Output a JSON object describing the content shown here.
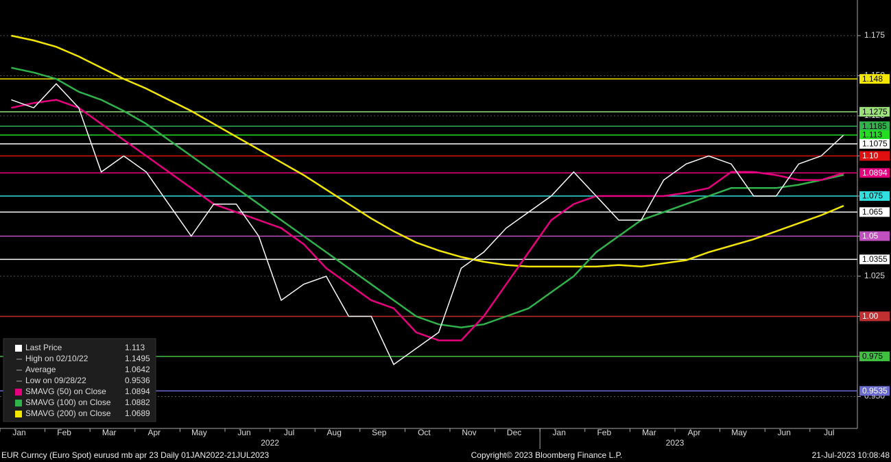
{
  "chart_data": {
    "type": "line",
    "categories": [
      "Jan",
      null,
      "Feb",
      null,
      "Mar",
      null,
      "Apr",
      null,
      "May",
      null,
      "Jun",
      null,
      "Jul",
      null,
      "Aug",
      null,
      "Sep",
      null,
      "Oct",
      null,
      "Nov",
      null,
      "Dec",
      null,
      "Jan",
      null,
      "Feb",
      null,
      "Mar",
      null,
      "Apr",
      null,
      "May",
      null,
      "Jun",
      null,
      "Jul",
      null
    ],
    "years": [
      "2022",
      "2023"
    ],
    "series": [
      {
        "name": "Last Price",
        "color": "#ffffff",
        "legend_value": 1.113,
        "values": [
          1.135,
          1.13,
          1.145,
          1.13,
          1.09,
          1.1,
          1.09,
          1.07,
          1.05,
          1.07,
          1.07,
          1.05,
          1.01,
          1.02,
          1.025,
          1.0,
          1.0,
          0.97,
          0.98,
          0.99,
          1.03,
          1.04,
          1.055,
          1.065,
          1.075,
          1.09,
          1.075,
          1.06,
          1.06,
          1.085,
          1.095,
          1.1,
          1.095,
          1.075,
          1.075,
          1.095,
          1.1,
          1.113
        ]
      },
      {
        "name": "SMAVG (50)  on Close",
        "color": "#e6007e",
        "legend_value": 1.0894,
        "values": [
          1.13,
          1.133,
          1.135,
          1.13,
          1.12,
          1.11,
          1.1,
          1.09,
          1.08,
          1.07,
          1.065,
          1.06,
          1.055,
          1.045,
          1.03,
          1.02,
          1.01,
          1.005,
          0.99,
          0.985,
          0.985,
          1.0,
          1.02,
          1.04,
          1.06,
          1.07,
          1.075,
          1.075,
          1.075,
          1.075,
          1.077,
          1.08,
          1.09,
          1.09,
          1.088,
          1.085,
          1.085,
          1.0894
        ]
      },
      {
        "name": "SMAVG (100)  on Close",
        "color": "#2fb34a",
        "legend_value": 1.0882,
        "values": [
          1.155,
          1.152,
          1.148,
          1.14,
          1.135,
          1.128,
          1.12,
          1.11,
          1.1,
          1.09,
          1.08,
          1.07,
          1.06,
          1.05,
          1.04,
          1.03,
          1.02,
          1.01,
          1.0,
          0.995,
          0.993,
          0.995,
          1.0,
          1.005,
          1.015,
          1.025,
          1.04,
          1.05,
          1.06,
          1.065,
          1.07,
          1.075,
          1.08,
          1.08,
          1.08,
          1.082,
          1.085,
          1.0882
        ]
      },
      {
        "name": "SMAVG (200)  on Close",
        "color": "#f2e600",
        "legend_value": 1.0689,
        "values": [
          1.175,
          1.172,
          1.168,
          1.162,
          1.155,
          1.148,
          1.142,
          1.135,
          1.128,
          1.12,
          1.112,
          1.104,
          1.096,
          1.088,
          1.079,
          1.07,
          1.061,
          1.053,
          1.046,
          1.041,
          1.037,
          1.034,
          1.032,
          1.031,
          1.031,
          1.031,
          1.031,
          1.032,
          1.031,
          1.033,
          1.035,
          1.04,
          1.044,
          1.048,
          1.053,
          1.058,
          1.063,
          1.0689
        ]
      }
    ],
    "stats": [
      {
        "name": "High on 02/10/22",
        "value": 1.1495
      },
      {
        "name": "Average",
        "value": 1.0642
      },
      {
        "name": "Low on 09/28/22",
        "value": 0.9536
      }
    ],
    "levels": [
      {
        "value": 1.148,
        "label": "1.148",
        "color": "#f2e600"
      },
      {
        "value": 1.1275,
        "label": "1.1275",
        "color": "#9be27a"
      },
      {
        "value": 1.1185,
        "label": "1.1185",
        "color": "#2fb34a"
      },
      {
        "value": 1.113,
        "label": "1.113",
        "color": "#22dd22"
      },
      {
        "value": 1.1075,
        "label": "1.1075",
        "color": "#ffffff"
      },
      {
        "value": 1.1,
        "label": "1.10",
        "color": "#e01010"
      },
      {
        "value": 1.0894,
        "label": "1.0894",
        "color": "#e6007e"
      },
      {
        "value": 1.075,
        "label": "1.075",
        "color": "#30e0e0"
      },
      {
        "value": 1.065,
        "label": "1.065",
        "color": "#ffffff"
      },
      {
        "value": 1.05,
        "label": "1.05",
        "color": "#c050c0"
      },
      {
        "value": 1.0355,
        "label": "1.0355",
        "color": "#ffffff"
      },
      {
        "value": 1.0,
        "label": "1.00",
        "color": "#c03030"
      },
      {
        "value": 0.975,
        "label": "0.975",
        "color": "#40c040"
      },
      {
        "value": 0.9535,
        "label": "0.9535",
        "color": "#6a6ad0"
      }
    ],
    "ylim": [
      0.9314,
      1.1972
    ],
    "yticks": [
      1.175,
      {
        "value": 1.15,
        "label": "1.150"
      },
      1.125,
      {
        "value": 1.1,
        "label": "1.100"
      },
      1.075,
      {
        "value": 1.05,
        "label": "1.050"
      },
      1.025,
      {
        "value": 1.0,
        "label": "1.000"
      },
      0.975,
      {
        "value": 0.95,
        "label": "0.950"
      }
    ],
    "grid": true,
    "legend": "lower left",
    "footer_left": "EUR Curncy (Euro Spot) eurusd mb apr 23  Daily 01JAN2022-21JUL2023",
    "footer_center": "Copyright© 2023 Bloomberg Finance L.P.",
    "footer_right": "21-Jul-2023 10:08:48"
  }
}
